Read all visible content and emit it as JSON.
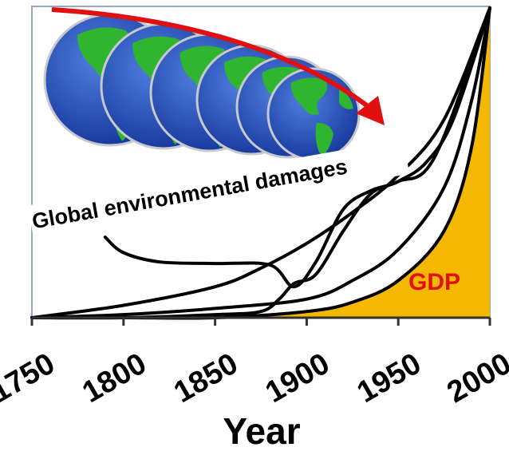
{
  "chart_data": {
    "type": "line",
    "xlabel": "Year",
    "ylabel": "",
    "xlim": [
      1750,
      2000
    ],
    "x_ticks": [
      1750,
      1800,
      1850,
      1900,
      1950,
      2000
    ],
    "annotations": {
      "banner": "Global environmental damages",
      "area_label": "GDP"
    },
    "colors": {
      "gdp_fill": "#f5b800",
      "gdp_label": "#e01010",
      "arrow": "#e01010",
      "lines": "#000000",
      "globe_ocean": "#1f4fb8",
      "globe_land": "#2fb52f"
    },
    "icons": [
      "globe-icon",
      "declining-arrow-icon"
    ],
    "series": [
      {
        "x": [
          1750,
          1800,
          1850,
          1900,
          1925,
          1950,
          1975,
          1990,
          2000
        ],
        "values": [
          0,
          0,
          0,
          2,
          5,
          12,
          28,
          55,
          100
        ]
      },
      {
        "x": [
          1750,
          1800,
          1850,
          1900,
          1925,
          1950,
          1975,
          1990,
          2000
        ],
        "values": [
          0,
          1,
          3,
          6,
          12,
          22,
          42,
          70,
          100
        ]
      },
      {
        "x": [
          1750,
          1800,
          1850,
          1875,
          1900,
          1925,
          1950,
          1975,
          2000
        ],
        "values": [
          0,
          4,
          10,
          16,
          24,
          34,
          46,
          64,
          100
        ]
      },
      {
        "x": [
          1750,
          1800,
          1850,
          1875,
          1885,
          1893,
          1905,
          1920,
          1935,
          1950,
          1965,
          1980,
          2000
        ],
        "values": [
          0,
          0,
          1,
          2,
          6,
          11,
          14,
          28,
          40,
          44,
          50,
          64,
          100
        ]
      },
      {
        "x": [
          1790,
          1800,
          1820,
          1850,
          1880,
          1893,
          1905,
          1920,
          1935,
          1950,
          1970,
          2000
        ],
        "values": [
          26,
          21,
          18,
          17.5,
          17,
          10,
          18,
          35,
          41,
          44,
          52,
          100
        ]
      }
    ]
  }
}
